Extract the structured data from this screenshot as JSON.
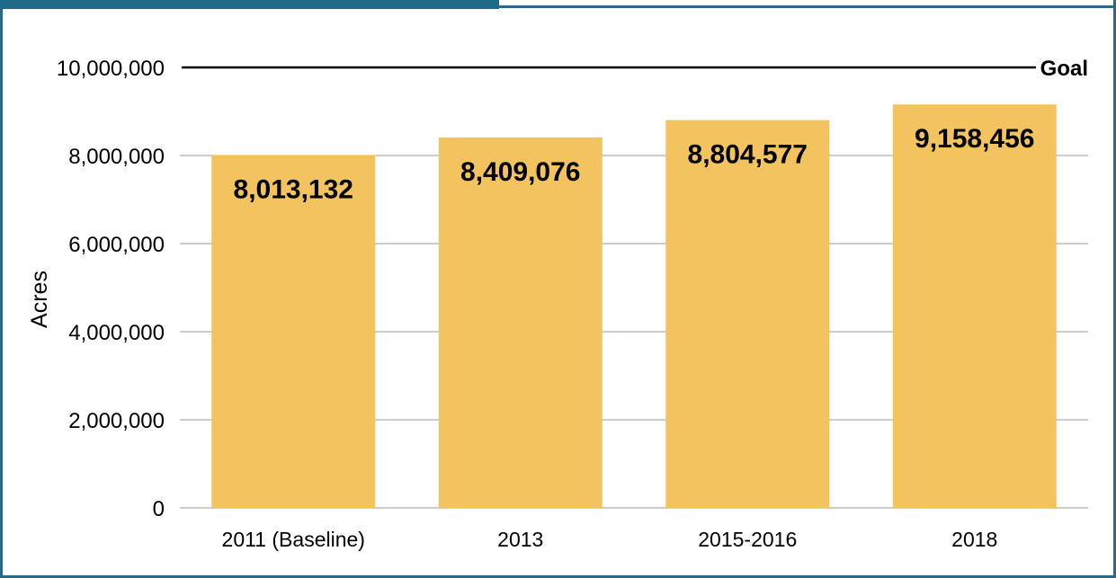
{
  "colors": {
    "frame": "#2a6a86",
    "bar": "#f2c35f",
    "grid": "#9a9a9a",
    "goal_line": "#000000",
    "text": "#000000"
  },
  "chart_data": {
    "type": "bar",
    "categories": [
      "2011 (Baseline)",
      "2013",
      "2015-2016",
      "2018"
    ],
    "values": [
      8013132,
      8409076,
      8804577,
      9158456
    ],
    "data_labels": [
      "8,013,132",
      "8,409,076",
      "8,804,577",
      "9,158,456"
    ],
    "title": "",
    "xlabel": "",
    "ylabel": "Acres",
    "ylim": [
      0,
      10000000
    ],
    "yticks": [
      0,
      2000000,
      4000000,
      6000000,
      8000000,
      10000000
    ],
    "ytick_labels": [
      "0",
      "2,000,000",
      "4,000,000",
      "6,000,000",
      "8,000,000",
      "10,000,000"
    ],
    "grid": true,
    "goal": {
      "value": 10000000,
      "label": "Goal"
    }
  }
}
